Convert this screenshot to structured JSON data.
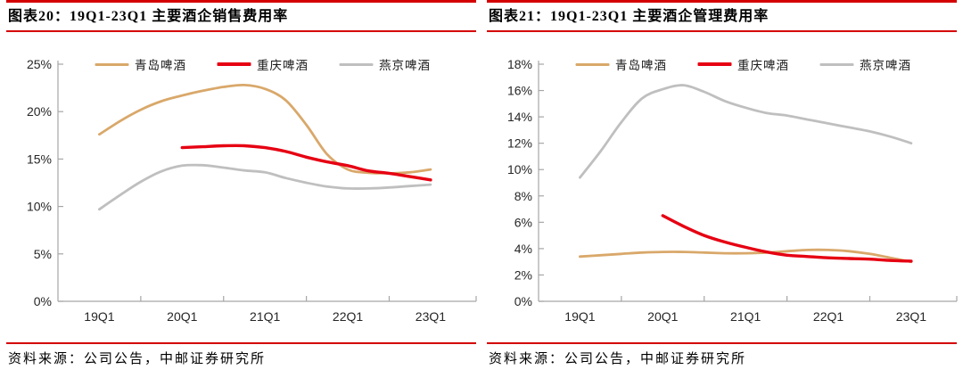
{
  "accent_color": "#d40000",
  "axis_color": "#a6a6a6",
  "label_color": "#262626",
  "figures": [
    {
      "title": "图表20：19Q1-23Q1 主要酒企销售费用率",
      "source": "资料来源：公司公告，中邮证券研究所"
    },
    {
      "title": "图表21：19Q1-23Q1 主要酒企管理费用率",
      "source": "资料来源：公司公告，中邮证券研究所"
    }
  ],
  "chart_data": [
    {
      "type": "line",
      "title": "图表20：19Q1-23Q1 主要酒企销售费用率",
      "x_tick_labels": [
        "19Q1",
        "20Q1",
        "21Q1",
        "22Q1",
        "23Q1"
      ],
      "quarters_per_year": 4,
      "ylim": [
        0,
        25
      ],
      "ytick_step": 5,
      "ytick_suffix": "%",
      "grid": false,
      "legend_position": "top",
      "series": [
        {
          "name": "青岛啤酒",
          "color": "#d9a86a",
          "stroke_width": 2.8,
          "start_quarter_index": 0,
          "values": [
            17.6,
            19.0,
            20.2,
            21.1,
            21.7,
            22.2,
            22.6,
            22.8,
            22.4,
            21.2,
            18.6,
            15.5,
            13.9,
            13.55,
            13.5,
            13.6,
            13.9
          ]
        },
        {
          "name": "重庆啤酒",
          "color": "#e60012",
          "stroke_width": 3.4,
          "start_quarter_index": 4,
          "values": [
            16.2,
            16.3,
            16.4,
            16.4,
            16.2,
            15.8,
            15.2,
            14.7,
            14.3,
            13.75,
            13.5,
            13.15,
            12.8
          ]
        },
        {
          "name": "燕京啤酒",
          "color": "#bfbfbf",
          "stroke_width": 2.8,
          "start_quarter_index": 0,
          "values": [
            9.7,
            11.2,
            12.6,
            13.7,
            14.3,
            14.35,
            14.1,
            13.8,
            13.6,
            13.0,
            12.5,
            12.1,
            11.9,
            11.9,
            12.0,
            12.15,
            12.3
          ]
        }
      ]
    },
    {
      "type": "line",
      "title": "图表21：19Q1-23Q1 主要酒企管理费用率",
      "x_tick_labels": [
        "19Q1",
        "20Q1",
        "21Q1",
        "22Q1",
        "23Q1"
      ],
      "quarters_per_year": 4,
      "ylim": [
        0,
        18
      ],
      "ytick_step": 2,
      "ytick_suffix": "%",
      "grid": false,
      "legend_position": "top",
      "series": [
        {
          "name": "青岛啤酒",
          "color": "#d9a86a",
          "stroke_width": 2.8,
          "start_quarter_index": 0,
          "values": [
            3.4,
            3.5,
            3.6,
            3.7,
            3.75,
            3.75,
            3.7,
            3.65,
            3.65,
            3.7,
            3.8,
            3.9,
            3.9,
            3.8,
            3.6,
            3.3,
            3.0
          ]
        },
        {
          "name": "重庆啤酒",
          "color": "#e60012",
          "stroke_width": 3.4,
          "start_quarter_index": 4,
          "values": [
            6.5,
            5.7,
            5.0,
            4.5,
            4.1,
            3.75,
            3.5,
            3.4,
            3.3,
            3.25,
            3.2,
            3.1,
            3.05
          ]
        },
        {
          "name": "燕京啤酒",
          "color": "#bfbfbf",
          "stroke_width": 2.8,
          "start_quarter_index": 0,
          "values": [
            9.4,
            11.4,
            13.6,
            15.4,
            16.1,
            16.4,
            15.9,
            15.2,
            14.7,
            14.3,
            14.1,
            13.8,
            13.5,
            13.2,
            12.9,
            12.5,
            12.0
          ]
        }
      ]
    }
  ]
}
